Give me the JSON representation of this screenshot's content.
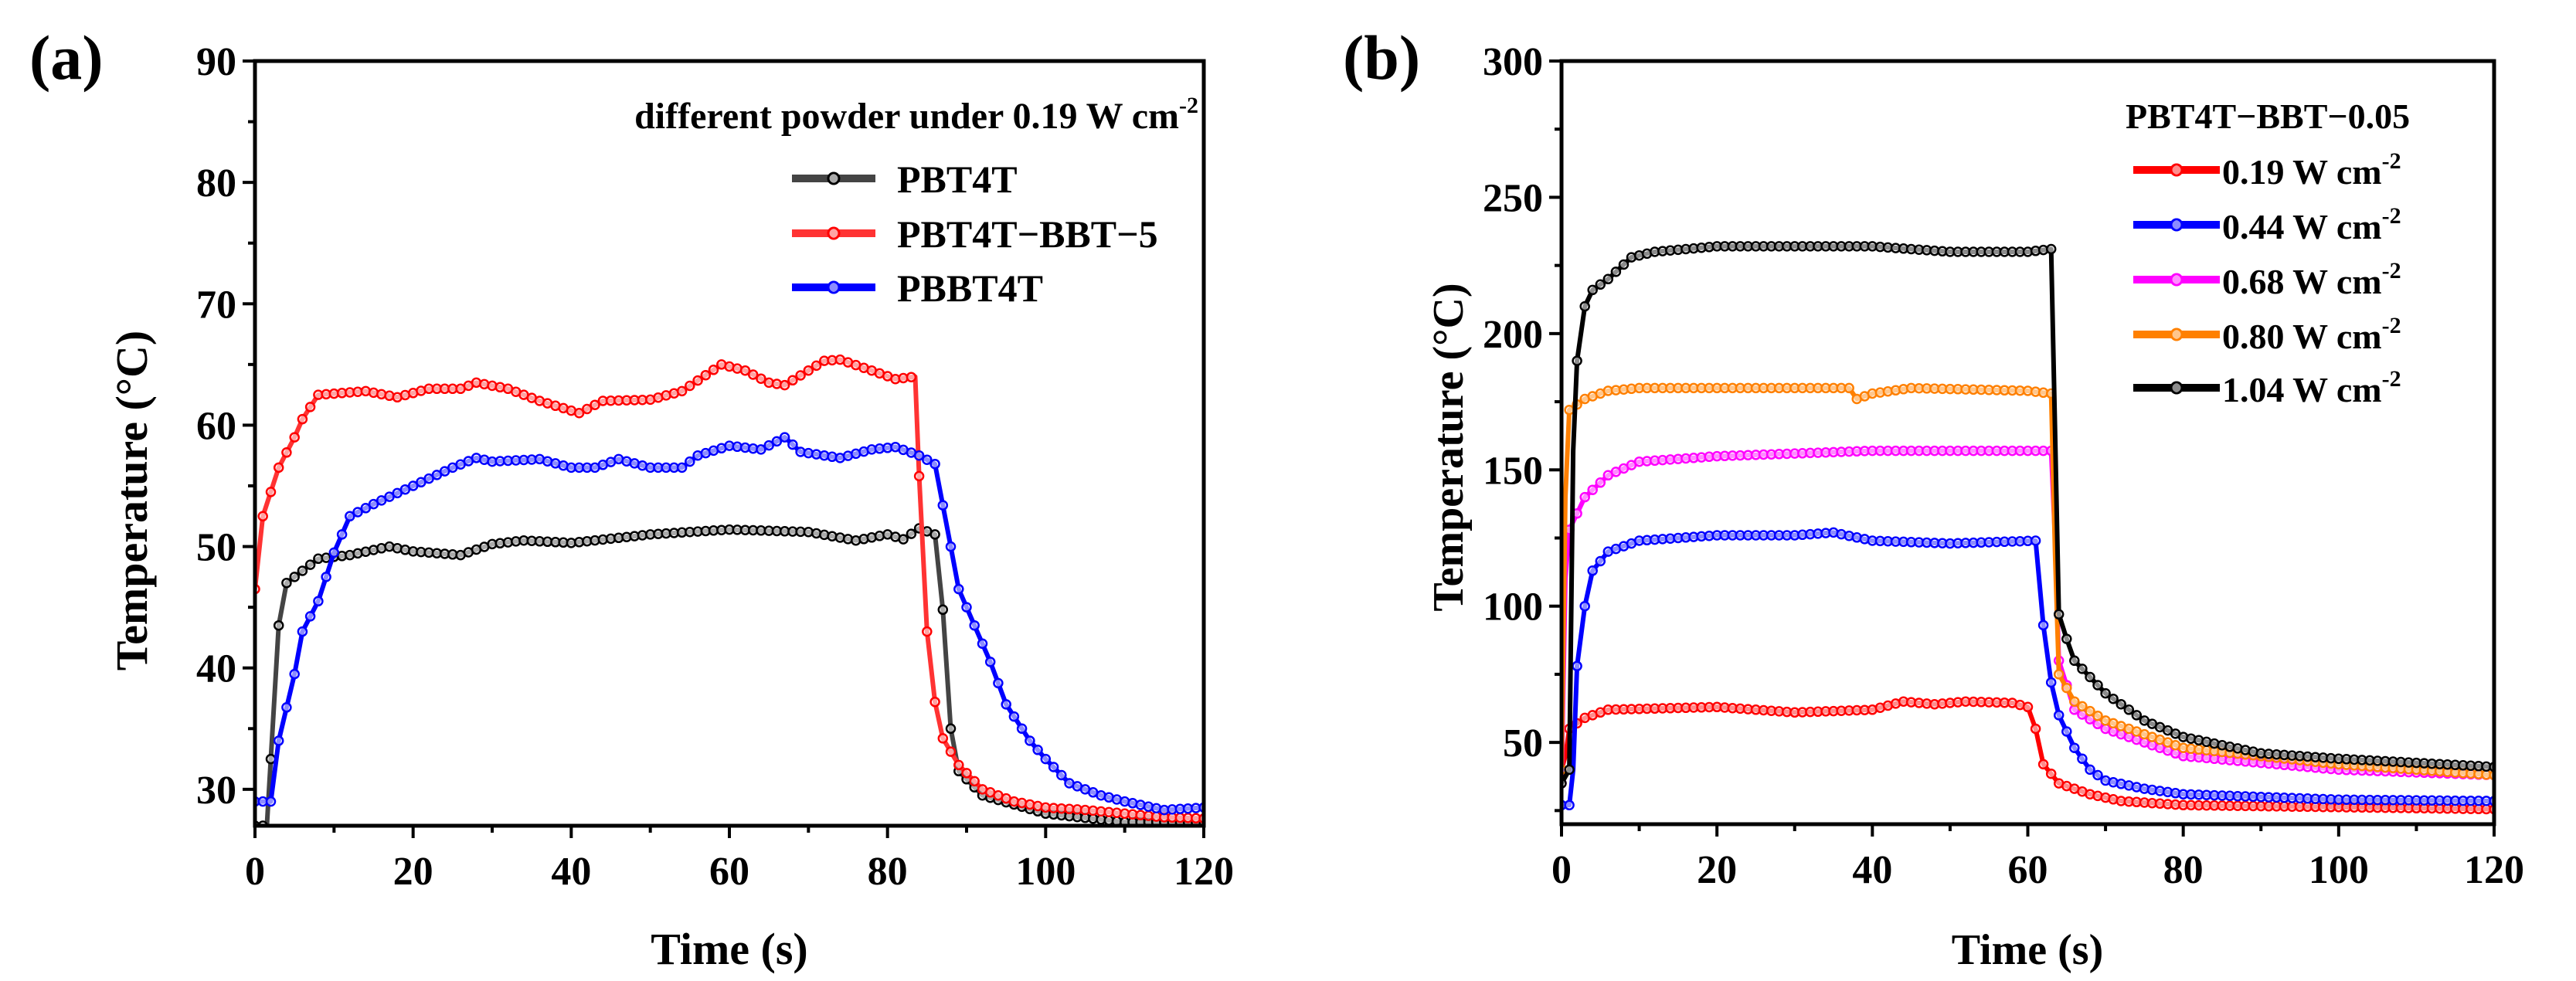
{
  "chart_data": [
    {
      "type": "line",
      "panel_label": "(a)",
      "title": "",
      "xlabel": "Time (s)",
      "ylabel": "Temperature (°C)",
      "xlim": [
        0,
        120
      ],
      "ylim": [
        27,
        90
      ],
      "xticks": [
        0,
        20,
        40,
        60,
        80,
        100,
        120
      ],
      "yticks": [
        30,
        40,
        50,
        60,
        70,
        80,
        90
      ],
      "grid": false,
      "legend_placement": "top-right",
      "legend_title": {
        "text": "different powder under 0.19 W cm",
        "sup": "-2"
      },
      "series": [
        {
          "name": "PBT4T",
          "color": "#444444",
          "marker_color": "#000000",
          "x": [
            0,
            1.5,
            3,
            4,
            6,
            8,
            12,
            17,
            20,
            26,
            30,
            34,
            40,
            50,
            60,
            70,
            76,
            80,
            82,
            84,
            86,
            87,
            88,
            89,
            92,
            100,
            110,
            120
          ],
          "y": [
            27,
            27,
            43.5,
            47,
            48,
            49,
            49.3,
            50,
            49.6,
            49.3,
            50.2,
            50.5,
            50.3,
            51,
            51.4,
            51.2,
            50.5,
            51,
            50.6,
            51.5,
            51,
            44.8,
            35,
            31.5,
            29.5,
            28,
            27.3,
            27.3
          ]
        },
        {
          "name": "PBT4T−BBT−5",
          "color": "#ff3333",
          "marker_color": "#ff0000",
          "x": [
            0,
            1,
            3,
            5,
            6,
            8,
            14,
            18,
            22,
            26,
            28,
            32,
            36,
            41,
            44,
            50,
            54,
            59,
            62,
            65,
            67,
            70,
            72,
            74,
            78,
            81,
            83.5,
            84,
            85,
            86,
            87,
            89,
            92,
            96,
            100,
            105,
            110,
            115,
            120
          ],
          "y": [
            46.5,
            52.5,
            56.5,
            59,
            60.5,
            62.5,
            62.8,
            62.3,
            63,
            63,
            63.5,
            63,
            62,
            61,
            62,
            62.1,
            62.8,
            65,
            64.5,
            63.5,
            63.3,
            64.5,
            65.3,
            65.4,
            64.5,
            63.8,
            64,
            55.8,
            43,
            37.2,
            34.2,
            32,
            30,
            29,
            28.5,
            28.3,
            28,
            27.7,
            27.6
          ]
        },
        {
          "name": "PBBT4T",
          "color": "#0000ff",
          "marker_color": "#0000ff",
          "x": [
            0,
            2,
            3,
            5,
            6,
            8,
            10,
            12,
            15,
            20,
            25,
            28,
            30,
            36,
            40,
            43,
            46,
            50,
            54,
            56,
            60,
            64,
            67,
            69,
            74,
            78,
            81,
            84,
            86,
            88,
            89,
            91,
            93,
            95,
            98,
            100,
            103,
            107,
            110,
            115,
            120
          ],
          "y": [
            29,
            29,
            34,
            39.5,
            43,
            45.5,
            49.5,
            52.5,
            53.5,
            55,
            56.5,
            57.3,
            57,
            57.2,
            56.5,
            56.5,
            57.2,
            56.5,
            56.5,
            57.5,
            58.3,
            58,
            59,
            57.8,
            57.3,
            58,
            58.2,
            57.5,
            56.8,
            50,
            46.5,
            43.5,
            40.5,
            37,
            34,
            32.5,
            30.5,
            29.5,
            29,
            28.3,
            28.5
          ]
        }
      ]
    },
    {
      "type": "line",
      "panel_label": "(b)",
      "title": "",
      "xlabel": "Time (s)",
      "ylabel": "Temperature (°C)",
      "xlim": [
        0,
        120
      ],
      "ylim": [
        20,
        300
      ],
      "xticks": [
        0,
        20,
        40,
        60,
        80,
        100,
        120
      ],
      "yticks": [
        50,
        100,
        150,
        200,
        250,
        300
      ],
      "grid": false,
      "legend_placement": "top-right",
      "legend_title": {
        "text": "PBT4T−BBT−0.05",
        "sup": ""
      },
      "series": [
        {
          "name": "0.19 W cm",
          "sup": "-2",
          "color": "#ff0000",
          "marker_color": "#ff0000",
          "x": [
            0,
            0.5,
            1,
            3,
            6,
            20,
            30,
            40,
            44,
            48,
            52,
            58,
            60,
            61,
            62,
            64,
            68,
            72,
            80,
            120
          ],
          "y": [
            40,
            45,
            55,
            59,
            62,
            63,
            61,
            62,
            65,
            64,
            65,
            64.5,
            63,
            55,
            42,
            35,
            31,
            28.5,
            27,
            25.5
          ]
        },
        {
          "name": "0.44 W cm",
          "sup": "-2",
          "color": "#0000ff",
          "marker_color": "#0000ff",
          "x": [
            0,
            1,
            1.5,
            2,
            3,
            4,
            6,
            10,
            20,
            30,
            35,
            40,
            50,
            61,
            62,
            63,
            64,
            66,
            68,
            70,
            75,
            80,
            100,
            120
          ],
          "y": [
            27,
            27,
            40,
            78,
            100,
            113,
            120,
            124,
            126,
            126,
            127,
            124,
            123,
            124,
            93,
            72,
            60,
            48,
            40,
            36,
            33,
            31,
            29,
            28.5
          ]
        },
        {
          "name": "0.68 W cm",
          "sup": "-2",
          "color": "#ff00ff",
          "marker_color": "#ff00ff",
          "x": [
            0,
            0.5,
            1,
            3,
            6,
            10,
            20,
            30,
            40,
            63,
            63.5,
            64,
            66,
            70,
            80,
            100,
            120
          ],
          "y": [
            35,
            110,
            128,
            140,
            148,
            153,
            155,
            156,
            157,
            157,
            125,
            80,
            62,
            55,
            45,
            40,
            38
          ]
        },
        {
          "name": "0.80 W cm",
          "sup": "-2",
          "color": "#ff8000",
          "marker_color": "#ff8000",
          "x": [
            0,
            0.5,
            1,
            3,
            6,
            10,
            37,
            38,
            40,
            45,
            60,
            63,
            63.5,
            64,
            66,
            70,
            80,
            100,
            120
          ],
          "y": [
            40,
            140,
            172,
            176,
            179,
            180,
            180,
            176,
            178,
            180,
            179,
            178,
            120,
            75,
            65,
            58,
            48,
            42,
            38
          ]
        },
        {
          "name": "1.04 W cm",
          "sup": "-2",
          "color": "#000000",
          "marker_color": "#000000",
          "x": [
            0,
            1,
            1.5,
            2,
            3,
            4,
            6,
            9,
            12,
            20,
            40,
            50,
            60,
            63,
            63.5,
            64,
            65,
            66,
            70,
            75,
            80,
            90,
            100,
            120
          ],
          "y": [
            35,
            40,
            157,
            190,
            210,
            216,
            220,
            228,
            230,
            232,
            232,
            230,
            230,
            231,
            165,
            97,
            88,
            80,
            68,
            58,
            52,
            46,
            44,
            41
          ]
        }
      ]
    }
  ]
}
